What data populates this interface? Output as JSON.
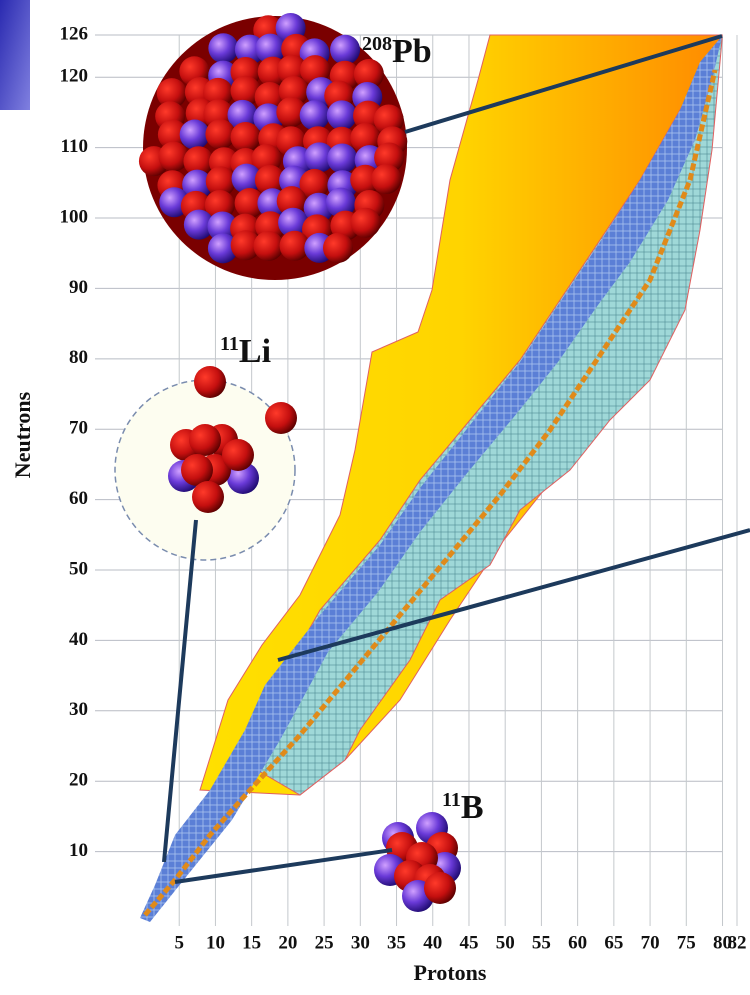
{
  "chart_data": {
    "type": "nuclide-chart",
    "x_label": "Protons",
    "y_label": "Neutrons",
    "xlim": [
      0,
      82
    ],
    "ylim": [
      0,
      126
    ],
    "xticks": [
      5,
      10,
      15,
      20,
      25,
      30,
      35,
      40,
      45,
      50,
      55,
      60,
      65,
      70,
      75,
      80,
      82
    ],
    "yticks": [
      10,
      20,
      30,
      40,
      50,
      60,
      70,
      80,
      90,
      100,
      110,
      120,
      126
    ],
    "grid": true,
    "annotations": [
      {
        "mass": "208",
        "element": "Pb"
      },
      {
        "mass": "11",
        "element": "Li"
      },
      {
        "mass": "11",
        "element": "B"
      }
    ]
  }
}
